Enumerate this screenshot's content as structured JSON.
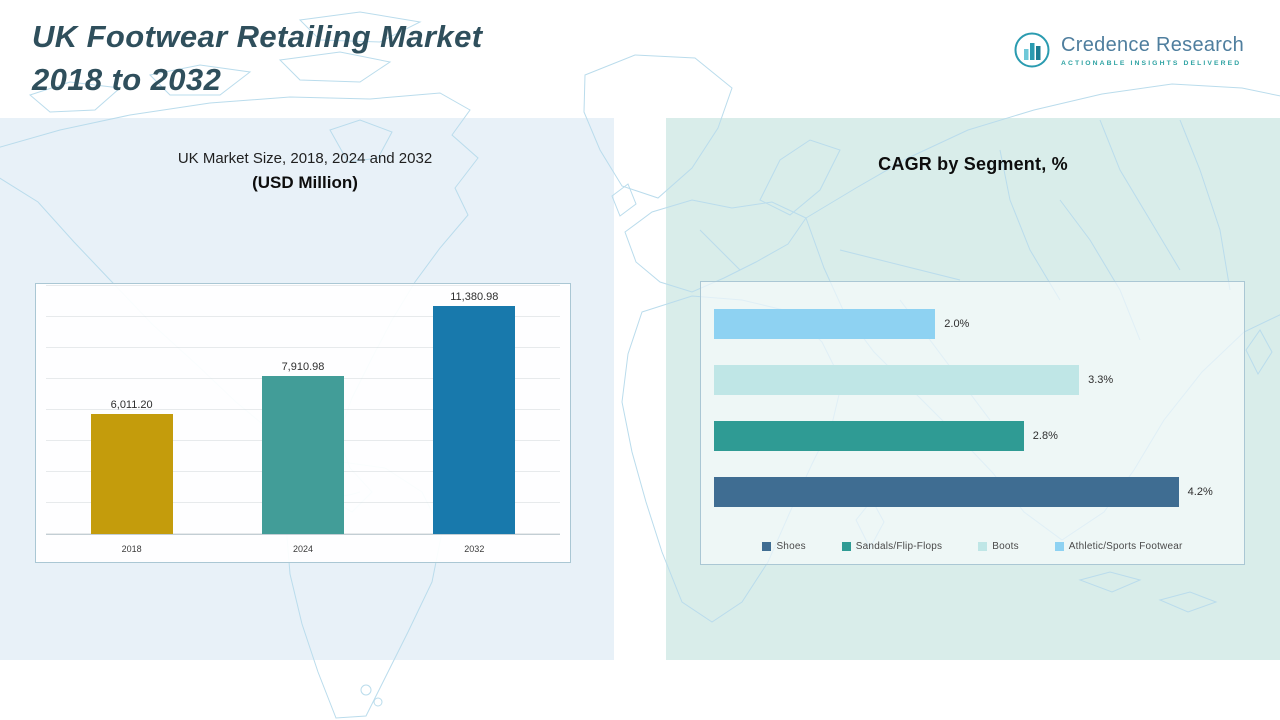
{
  "header": {
    "title_line1": "UK Footwear Retailing Market",
    "title_line2": "2018 to 2032"
  },
  "logo": {
    "name": "Credence Research",
    "tagline": "Actionable Insights Delivered"
  },
  "colors": {
    "title_text": "#2f4f5c",
    "left_panel_bg": "#e8f1f8",
    "right_panel_bg": "#d9edea",
    "map_outline": "#badcec",
    "logo_name_text": "#4f7e9e",
    "logo_tagline_text": "#2fa3a3"
  },
  "chart_data": [
    {
      "type": "bar",
      "orientation": "vertical",
      "title": "UK Market Size, 2018, 2024 and 2032",
      "subtitle": "(USD Million)",
      "categories": [
        "2018",
        "2024",
        "2032"
      ],
      "values": [
        6011.2,
        7910.98,
        11380.98
      ],
      "labels": [
        "6,011.20",
        "7,910.98",
        "11,380.98"
      ],
      "colors": [
        "#c49c0c",
        "#429d98",
        "#1879ac"
      ],
      "ylim": [
        0,
        12500
      ],
      "grid": true,
      "legend_position": "none"
    },
    {
      "type": "bar",
      "orientation": "horizontal",
      "title": "CAGR by Segment, %",
      "categories": [
        "Shoes",
        "Sandals/Flip-Flops",
        "Boots",
        "Athletic/Sports Footwear"
      ],
      "values": [
        4.2,
        2.8,
        3.3,
        2.0
      ],
      "labels": [
        "4.2%",
        "2.8%",
        "3.3%",
        "2.0%"
      ],
      "colors": [
        "#3f6d92",
        "#2f9b94",
        "#bfe6e6",
        "#8ed2f2"
      ],
      "xlim": [
        0,
        4.7
      ],
      "bar_display_order_top_to_bottom": [
        "Athletic/Sports Footwear",
        "Boots",
        "Sandals/Flip-Flops",
        "Shoes"
      ],
      "grid": false,
      "legend_position": "bottom"
    }
  ]
}
